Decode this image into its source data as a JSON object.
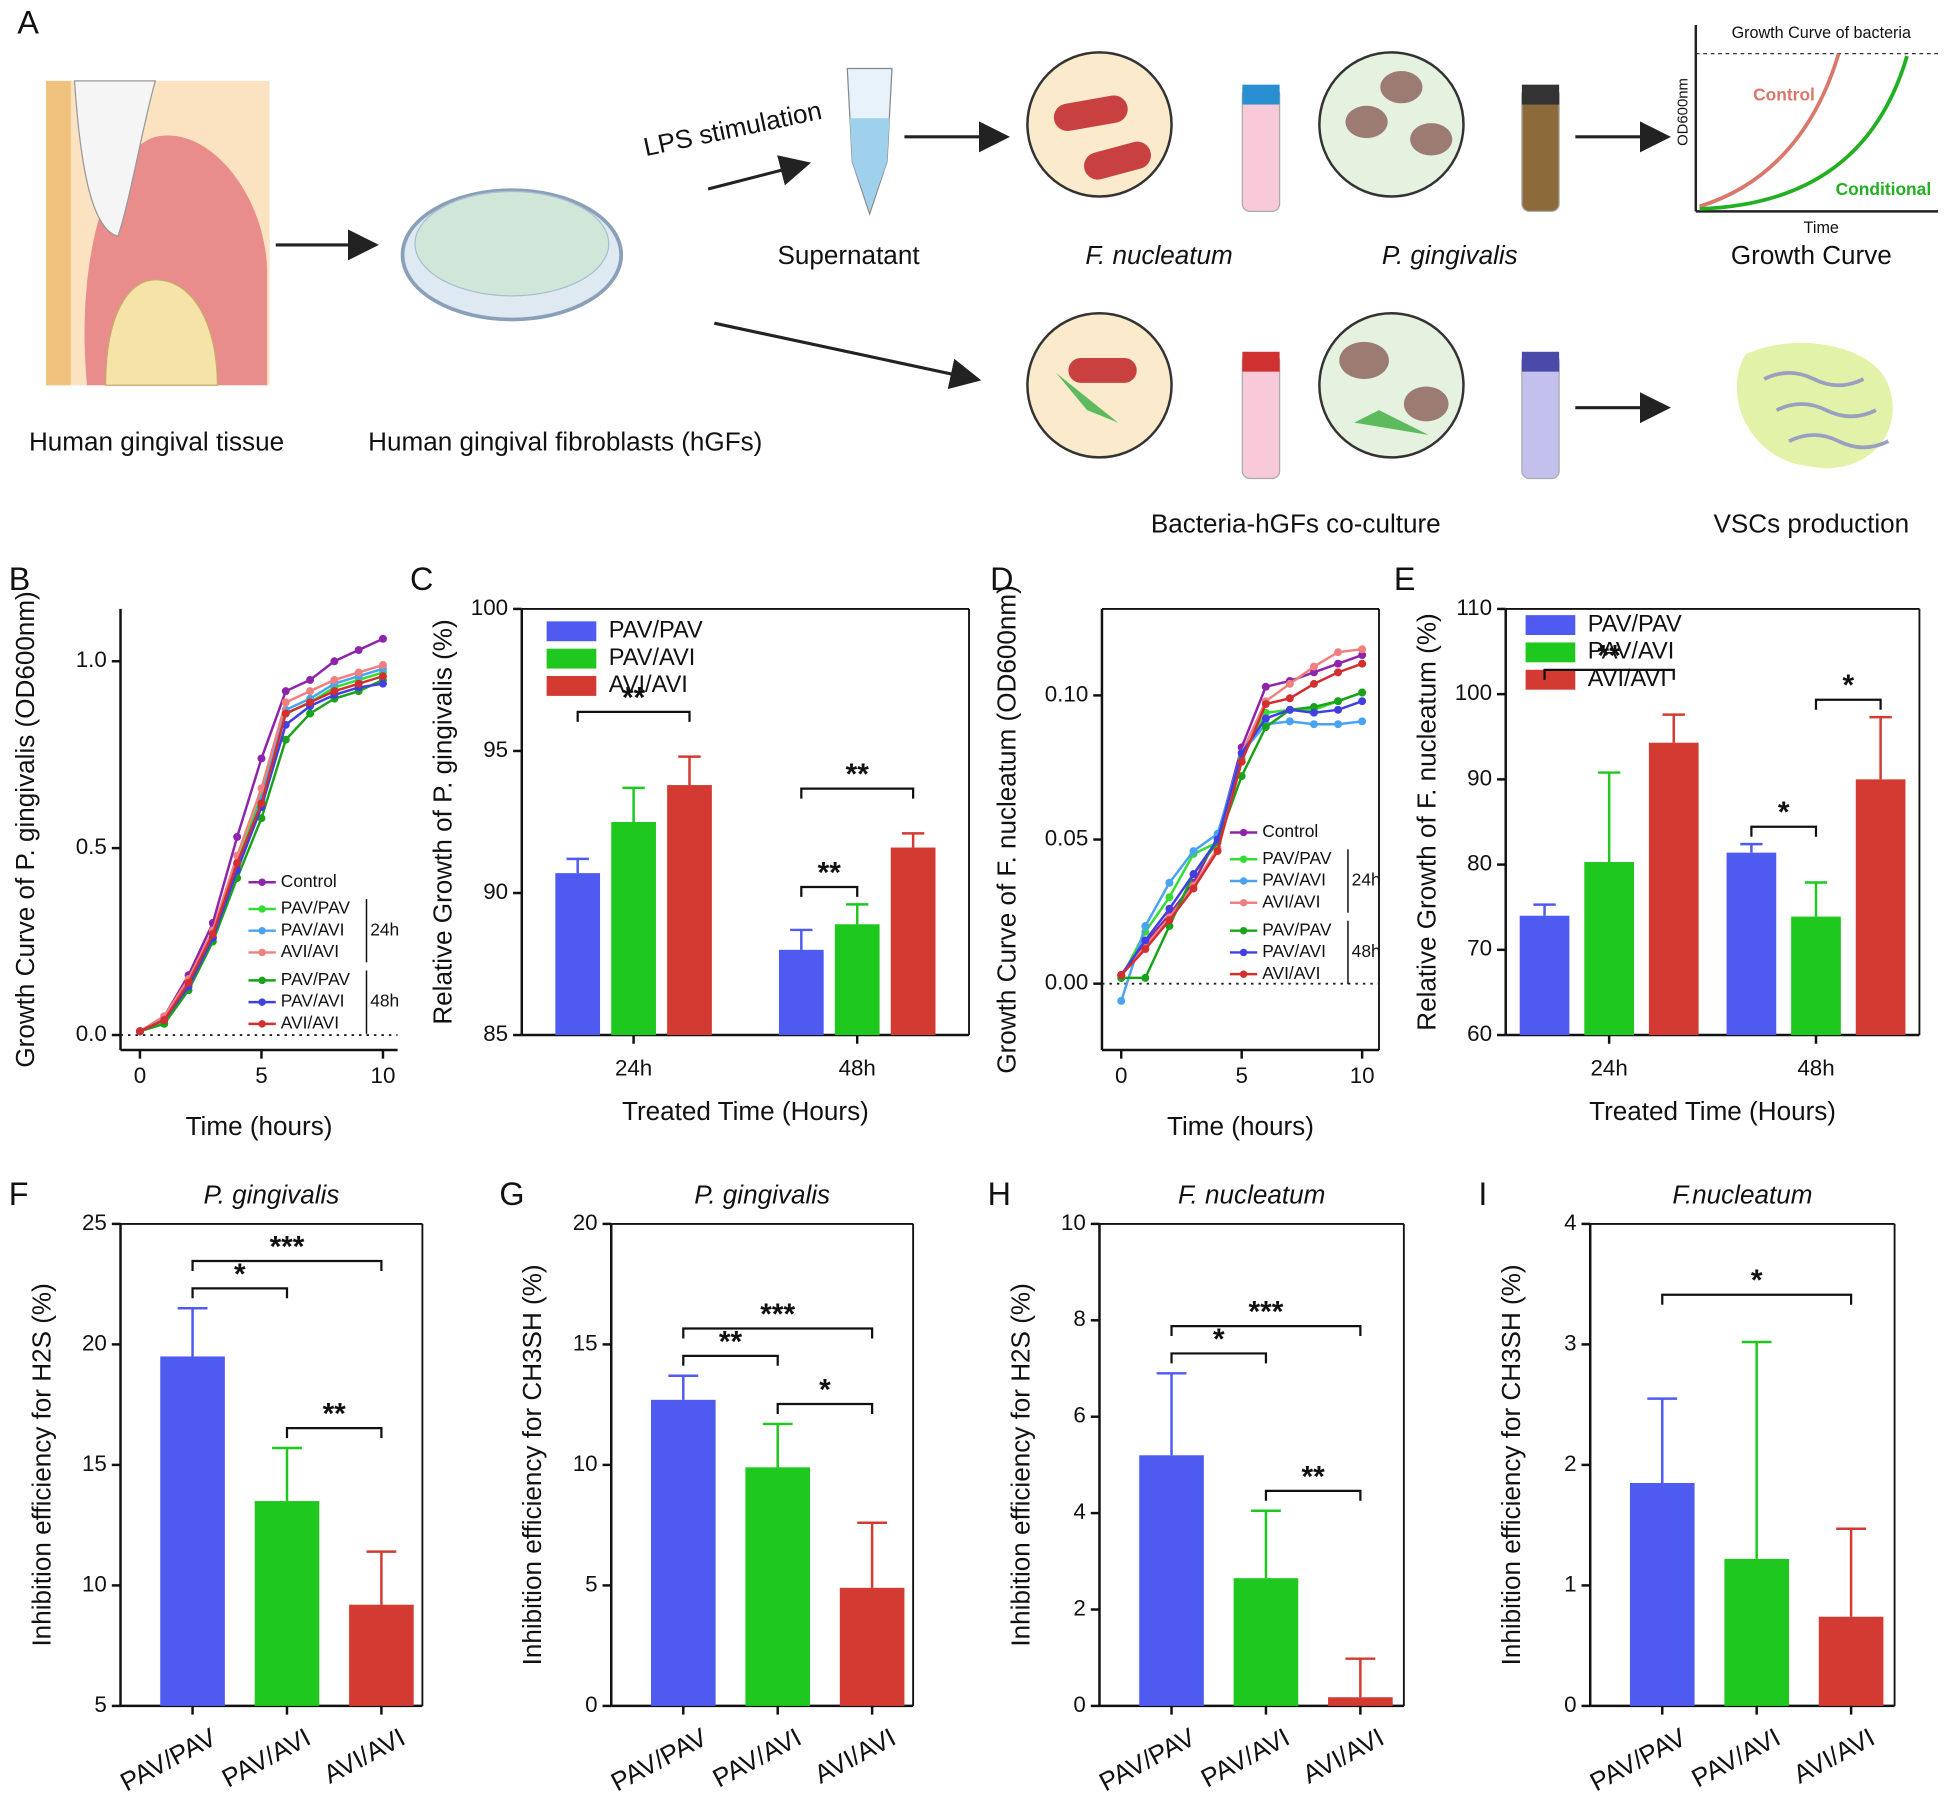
{
  "panel_a": {
    "letter": "A",
    "lps": "LPS stimulation",
    "supernatant": "Supernatant",
    "fn": "F. nucleatum",
    "pg": "P. gingivalis",
    "growth_curve": "Growth Curve",
    "inset_title": "Growth Curve of bacteria",
    "inset_control": "Control",
    "inset_conditional": "Conditional",
    "inset_ylabel": "OD600nm",
    "inset_xlabel": "Time",
    "tissue": "Human gingival tissue",
    "hgfs": "Human gingival fibroblasts (hGFs)",
    "coculture": "Bacteria-hGFs co-culture",
    "vscs": "VSCs production"
  },
  "chart_data": [
    {
      "panel": "B",
      "type": "line",
      "xlabel": "Time (hours)",
      "ylabel": "Growth Curve of P. gingivalis (OD600nm)",
      "x": [
        0,
        1,
        2,
        3,
        4,
        5,
        6,
        7,
        8,
        9,
        10
      ],
      "xlim": [
        -0.8,
        10.6
      ],
      "xticks": [
        0,
        5,
        10
      ],
      "ylim": [
        -0.04,
        1.14
      ],
      "yticks": [
        {
          "value": 0,
          "label": "0.0"
        },
        {
          "value": 0.5,
          "label": "0.5"
        },
        {
          "value": 1,
          "label": "1.0"
        }
      ],
      "hline": 0,
      "frame": false,
      "series": [
        {
          "name": "Control",
          "color": "#8e24aa",
          "values": [
            0.01,
            0.05,
            0.16,
            0.3,
            0.53,
            0.74,
            0.92,
            0.95,
            1.0,
            1.03,
            1.06
          ]
        }
      ],
      "groups": [
        {
          "label": "24h",
          "series": [
            {
              "name": "PAV/PAV",
              "color": "#33dd33",
              "values": [
                0.01,
                0.04,
                0.14,
                0.27,
                0.46,
                0.64,
                0.86,
                0.89,
                0.93,
                0.95,
                0.97
              ]
            },
            {
              "name": "PAV/AVI",
              "color": "#4aa3f0",
              "values": [
                0.01,
                0.04,
                0.14,
                0.26,
                0.45,
                0.63,
                0.87,
                0.9,
                0.94,
                0.96,
                0.98
              ]
            },
            {
              "name": "AVI/AVI",
              "color": "#f08080",
              "values": [
                0.01,
                0.05,
                0.15,
                0.28,
                0.48,
                0.66,
                0.89,
                0.92,
                0.95,
                0.97,
                0.99
              ]
            }
          ]
        },
        {
          "label": "48h",
          "series": [
            {
              "name": "PAV/PAV",
              "color": "#1aa31a",
              "values": [
                0.01,
                0.03,
                0.12,
                0.25,
                0.42,
                0.58,
                0.79,
                0.86,
                0.9,
                0.92,
                0.95
              ]
            },
            {
              "name": "PAV/AVI",
              "color": "#4040e0",
              "values": [
                0.01,
                0.04,
                0.13,
                0.26,
                0.44,
                0.61,
                0.83,
                0.88,
                0.91,
                0.93,
                0.94
              ]
            },
            {
              "name": "AVI/AVI",
              "color": "#d32f2f",
              "values": [
                0.01,
                0.04,
                0.14,
                0.27,
                0.46,
                0.62,
                0.86,
                0.89,
                0.92,
                0.94,
                0.96
              ]
            }
          ]
        }
      ]
    },
    {
      "panel": "C",
      "type": "grouped_bar",
      "xlabel": "Treated Time (Hours)",
      "ylabel": "Relative Growth of P. gingivalis (%)",
      "categories": [
        "24h",
        "48h"
      ],
      "ylim": [
        85,
        100
      ],
      "yticks": [
        85,
        90,
        95,
        100
      ],
      "frame": true,
      "series": [
        {
          "name": "PAV/PAV",
          "color": "#4f5bf0",
          "values": [
            90.7,
            88.0
          ],
          "errors": [
            0.5,
            0.7
          ]
        },
        {
          "name": "PAV/AVI",
          "color": "#1ec81e",
          "values": [
            92.5,
            88.9
          ],
          "errors": [
            1.2,
            0.7
          ]
        },
        {
          "name": "AVI/AVI",
          "color": "#d23a32",
          "values": [
            93.8,
            91.6
          ],
          "errors": [
            1.0,
            0.5
          ]
        }
      ],
      "significance": [
        {
          "category": 0,
          "from": 0,
          "to": 2,
          "label": "**"
        },
        {
          "category": 1,
          "from": 0,
          "to": 1,
          "label": "**"
        },
        {
          "category": 1,
          "from": 0,
          "to": 2,
          "label": "**"
        }
      ]
    },
    {
      "panel": "D",
      "type": "line",
      "xlabel": "Time (hours)",
      "ylabel": "Growth Curve of F. nucleatum (OD600nm)",
      "x": [
        0,
        1,
        2,
        3,
        4,
        5,
        6,
        7,
        8,
        9,
        10
      ],
      "xlim": [
        -0.8,
        10.7
      ],
      "xticks": [
        0,
        5,
        10
      ],
      "ylim": [
        -0.023,
        0.13
      ],
      "yticks": [
        {
          "value": 0,
          "label": "0.00"
        },
        {
          "value": 0.05,
          "label": "0.05"
        },
        {
          "value": 0.1,
          "label": "0.10"
        }
      ],
      "hline": 0,
      "frame": true,
      "series": [
        {
          "name": "Control",
          "color": "#8e24aa",
          "values": [
            0.003,
            0.014,
            0.024,
            0.035,
            0.051,
            0.082,
            0.103,
            0.105,
            0.108,
            0.111,
            0.114
          ]
        }
      ],
      "groups": [
        {
          "label": "24h",
          "series": [
            {
              "name": "PAV/PAV",
              "color": "#33dd33",
              "values": [
                0.002,
                0.018,
                0.03,
                0.045,
                0.049,
                0.078,
                0.094,
                0.095,
                0.095,
                0.098,
                0.101
              ]
            },
            {
              "name": "PAV/AVI",
              "color": "#4aa3f0",
              "values": [
                -0.006,
                0.02,
                0.035,
                0.046,
                0.052,
                0.08,
                0.09,
                0.091,
                0.09,
                0.09,
                0.091
              ]
            },
            {
              "name": "AVI/AVI",
              "color": "#f08080",
              "values": [
                0.003,
                0.013,
                0.023,
                0.034,
                0.047,
                0.08,
                0.098,
                0.104,
                0.11,
                0.115,
                0.116
              ]
            }
          ]
        },
        {
          "label": "48h",
          "series": [
            {
              "name": "PAV/PAV",
              "color": "#1aa31a",
              "values": [
                0.002,
                0.002,
                0.02,
                0.038,
                0.049,
                0.072,
                0.089,
                0.095,
                0.096,
                0.098,
                0.101
              ]
            },
            {
              "name": "PAV/AVI",
              "color": "#4040e0",
              "values": [
                0.003,
                0.015,
                0.026,
                0.038,
                0.05,
                0.08,
                0.092,
                0.095,
                0.094,
                0.095,
                0.098
              ]
            },
            {
              "name": "AVI/AVI",
              "color": "#d32f2f",
              "values": [
                0.003,
                0.012,
                0.022,
                0.033,
                0.046,
                0.077,
                0.097,
                0.099,
                0.104,
                0.108,
                0.111
              ]
            }
          ]
        }
      ]
    },
    {
      "panel": "E",
      "type": "grouped_bar",
      "xlabel": "Treated Time (Hours)",
      "ylabel": "Relative Growth of F. nucleatum (%)",
      "categories": [
        "24h",
        "48h"
      ],
      "ylim": [
        60,
        110
      ],
      "yticks": [
        60,
        70,
        80,
        90,
        100,
        110
      ],
      "frame": true,
      "series": [
        {
          "name": "PAV/PAV",
          "color": "#4f5bf0",
          "values": [
            74.0,
            81.4
          ],
          "errors": [
            1.3,
            1.0
          ]
        },
        {
          "name": "PAV/AVI",
          "color": "#1ec81e",
          "values": [
            80.3,
            73.9
          ],
          "errors": [
            10.5,
            4.0
          ]
        },
        {
          "name": "AVI/AVI",
          "color": "#d23a32",
          "values": [
            94.3,
            90.0
          ],
          "errors": [
            3.3,
            7.3
          ]
        }
      ],
      "significance": [
        {
          "category": 0,
          "from": 0,
          "to": 2,
          "label": "**"
        },
        {
          "category": 1,
          "from": 0,
          "to": 1,
          "label": "*"
        },
        {
          "category": 1,
          "from": 1,
          "to": 2,
          "label": "*"
        }
      ]
    },
    {
      "panel": "F",
      "type": "bar",
      "title": "P. gingivalis",
      "ylabel": "Inhibition efficiency for H2S (%)",
      "categories": [
        "PAV/PAV",
        "PAV/AVI",
        "AVI/AVI"
      ],
      "values": [
        19.5,
        13.5,
        9.2
      ],
      "errors": [
        2.0,
        2.2,
        2.2
      ],
      "colors": [
        "#4f5bf0",
        "#1ec81e",
        "#d23a32"
      ],
      "ylim": [
        5,
        25
      ],
      "yticks": [
        5,
        10,
        15,
        20,
        25
      ],
      "frame": true,
      "significance": [
        {
          "from": 0,
          "to": 1,
          "label": "*"
        },
        {
          "from": 1,
          "to": 2,
          "label": "**"
        },
        {
          "from": 0,
          "to": 2,
          "label": "***"
        }
      ]
    },
    {
      "panel": "G",
      "type": "bar",
      "title": "P. gingivalis",
      "ylabel": "Inhibition efficiency for CH3SH (%)",
      "categories": [
        "PAV/PAV",
        "PAV/AVI",
        "AVI/AVI"
      ],
      "values": [
        12.7,
        9.9,
        4.9
      ],
      "errors": [
        1.0,
        1.8,
        2.7
      ],
      "colors": [
        "#4f5bf0",
        "#1ec81e",
        "#d23a32"
      ],
      "ylim": [
        0,
        20
      ],
      "yticks": [
        0,
        5,
        10,
        15,
        20
      ],
      "frame": true,
      "significance": [
        {
          "from": 0,
          "to": 1,
          "label": "**"
        },
        {
          "from": 1,
          "to": 2,
          "label": "*"
        },
        {
          "from": 0,
          "to": 2,
          "label": "***"
        }
      ]
    },
    {
      "panel": "H",
      "type": "bar",
      "title": "F. nucleatum",
      "ylabel": "Inhibition efficiency for H2S (%)",
      "categories": [
        "PAV/PAV",
        "PAV/AVI",
        "AVI/AVI"
      ],
      "values": [
        5.2,
        2.65,
        0.18
      ],
      "errors": [
        1.7,
        1.4,
        0.8
      ],
      "colors": [
        "#4f5bf0",
        "#1ec81e",
        "#d23a32"
      ],
      "ylim": [
        0,
        10
      ],
      "yticks": [
        0,
        2,
        4,
        6,
        8,
        10
      ],
      "frame": true,
      "significance": [
        {
          "from": 0,
          "to": 1,
          "label": "*"
        },
        {
          "from": 1,
          "to": 2,
          "label": "**"
        },
        {
          "from": 0,
          "to": 2,
          "label": "***"
        }
      ]
    },
    {
      "panel": "I",
      "type": "bar",
      "title": "F.nucleatum",
      "ylabel": "Inhibition efficiency for CH3SH (%)",
      "categories": [
        "PAV/PAV",
        "PAV/AVI",
        "AVI/AVI"
      ],
      "values": [
        1.85,
        1.22,
        0.74
      ],
      "errors": [
        0.7,
        1.8,
        0.73
      ],
      "colors": [
        "#4f5bf0",
        "#1ec81e",
        "#d23a32"
      ],
      "ylim": [
        0,
        4
      ],
      "yticks": [
        0,
        1,
        2,
        3,
        4
      ],
      "frame": true,
      "significance": [
        {
          "from": 0,
          "to": 2,
          "label": "*"
        }
      ]
    }
  ]
}
